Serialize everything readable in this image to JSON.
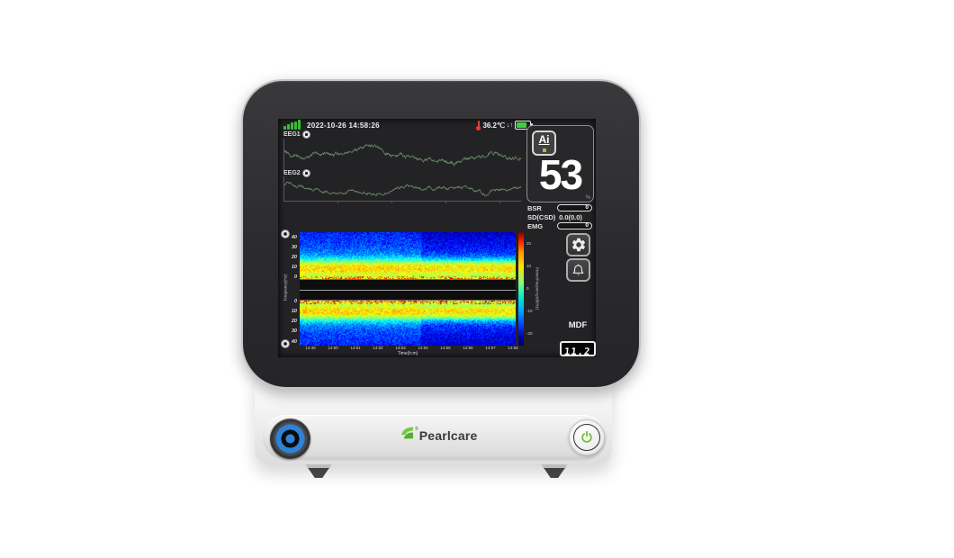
{
  "device": {
    "brand": "Pearlcare",
    "trademark": "®"
  },
  "colors": {
    "screen_bg": "#232326",
    "accent_green": "#74bf3f",
    "signal_green": "#3dbc35",
    "battery_green": "#3ecf3e",
    "eeg_trace": "#6d8a68",
    "alarm_red": "#e24130",
    "connector_blue": "#2e82d8",
    "value_white": "#ffffff"
  },
  "status_bar": {
    "datetime": "2022-10-26 14:58:26",
    "temperature": "36.2℃",
    "trend_arrows": "↓↑",
    "signal_bars": 5,
    "battery_fill_percent": 75
  },
  "eeg": {
    "ch1_label": "EEG1",
    "ch2_label": "EEG2"
  },
  "index_panel": {
    "ai_button_label": "Ai",
    "value": "53",
    "unit": "%"
  },
  "metrics": {
    "bsr": {
      "label": "BSR",
      "value": "0"
    },
    "sd": {
      "label": "SD(CSD)",
      "value": "0.0(0.0)"
    },
    "emg": {
      "label": "EMG",
      "value": "0"
    }
  },
  "mdf": {
    "label": "MDF",
    "value": "11.2"
  },
  "chart_data": [
    {
      "type": "line",
      "name": "EEG1",
      "description": "Raw EEG waveform, channel 1",
      "color": "#6d8a68"
    },
    {
      "type": "line",
      "name": "EEG2",
      "description": "Raw EEG waveform, channel 2",
      "color": "#6d8a68"
    },
    {
      "type": "heatmap",
      "name": "Density spectral array (mirrored top/bottom)",
      "xlabel": "Time(h:m)",
      "ylabel": "Frequency(Hz)",
      "x_ticks": [
        "14:49",
        "14:50",
        "14:51",
        "14:52",
        "14:53",
        "14:54",
        "14:55",
        "14:56",
        "14:57",
        "14:58"
      ],
      "y_ticks_top": [
        "40",
        "30",
        "20",
        "10",
        "0"
      ],
      "y_ticks_bottom": [
        "0",
        "10",
        "20",
        "30",
        "40"
      ],
      "freq_range_hz": [
        0,
        45
      ],
      "high_power_band_hz": [
        8,
        16
      ],
      "colorbar_label": "Power/Frequency(dB/Hz)",
      "colorbar_ticks": [
        "20",
        "10",
        "0",
        "-10",
        "-20"
      ],
      "legend_position": "right colorbar"
    }
  ]
}
